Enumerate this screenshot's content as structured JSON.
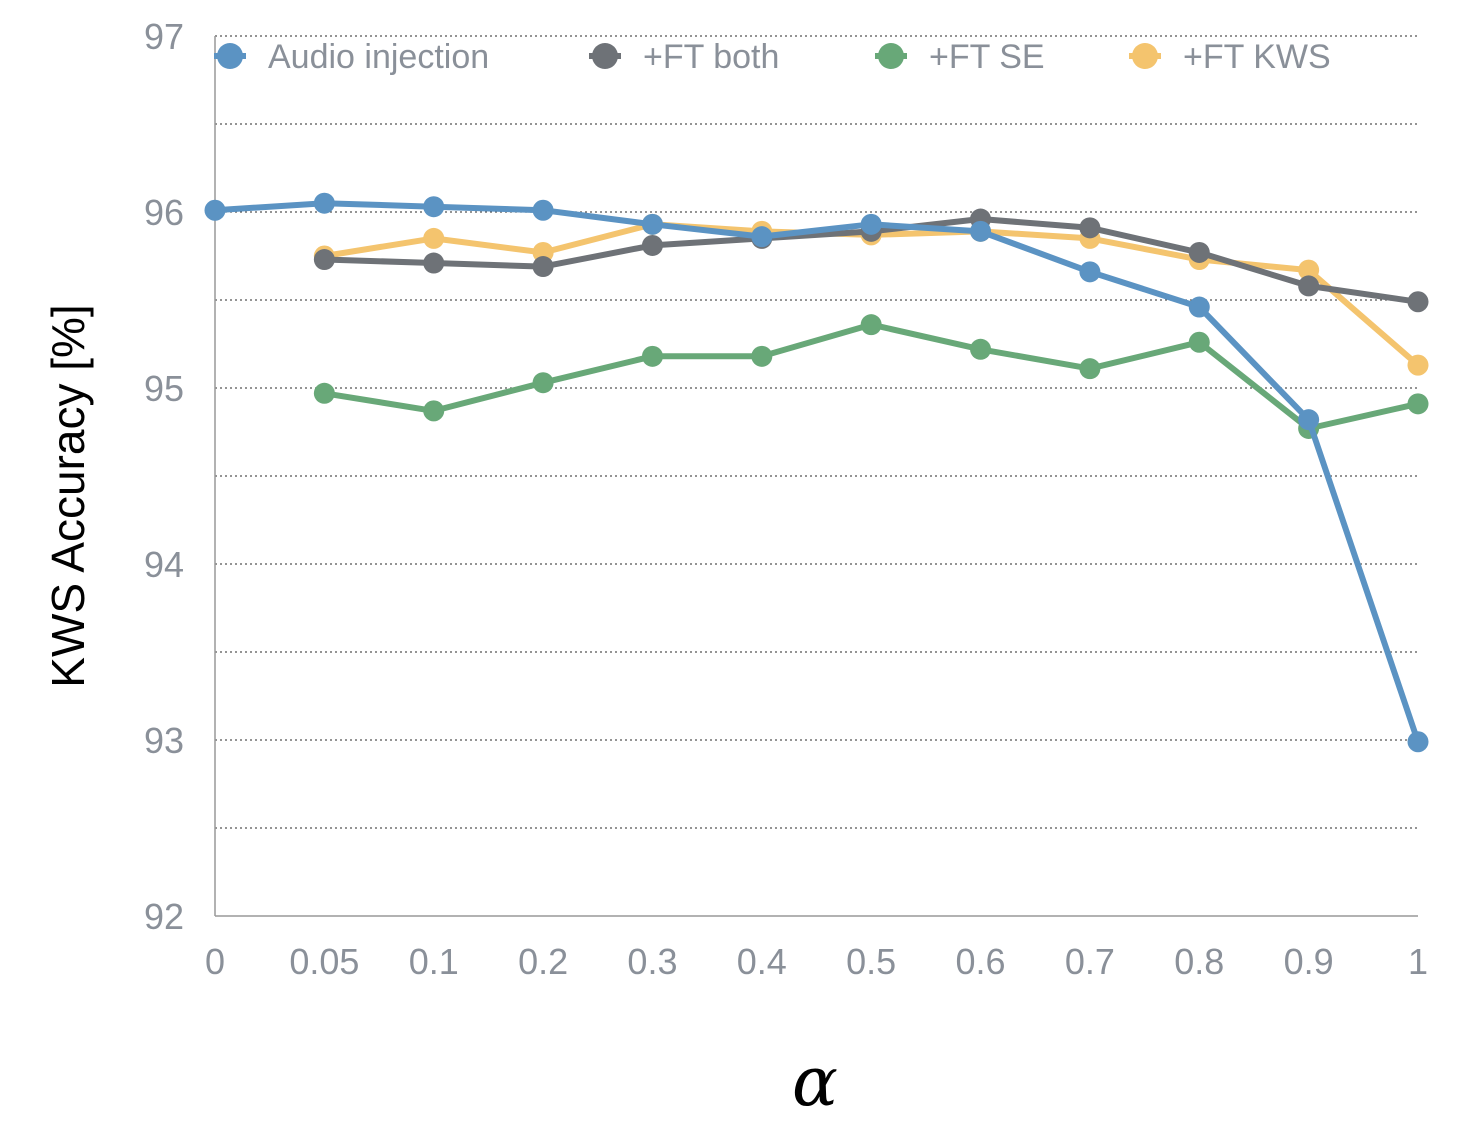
{
  "chart_data": {
    "type": "line",
    "title": "",
    "xlabel": "α",
    "ylabel": "KWS Accuracy [%]",
    "ylim": [
      92,
      97
    ],
    "yticks": [
      "92",
      "93",
      "94",
      "95",
      "96",
      "97"
    ],
    "categories": [
      "0",
      "0.05",
      "0.1",
      "0.2",
      "0.3",
      "0.4",
      "0.5",
      "0.6",
      "0.7",
      "0.8",
      "0.9",
      "1"
    ],
    "grid": true,
    "legend": "top",
    "series": [
      {
        "name": "Audio injection",
        "color": "#5b93c3",
        "values": [
          96.01,
          96.05,
          96.03,
          96.01,
          95.93,
          95.86,
          95.93,
          95.89,
          95.66,
          95.46,
          94.82,
          92.99
        ]
      },
      {
        "name": "+FT both",
        "color": "#6e7277",
        "values": [
          null,
          95.73,
          95.71,
          95.69,
          95.81,
          95.85,
          95.89,
          95.96,
          95.91,
          95.77,
          95.58,
          95.49
        ]
      },
      {
        "name": "+FT SE",
        "color": "#68a878",
        "values": [
          null,
          94.97,
          94.87,
          95.03,
          95.18,
          95.18,
          95.36,
          95.22,
          95.11,
          95.26,
          94.77,
          94.91
        ]
      },
      {
        "name": "+FT KWS",
        "color": "#f4c46e",
        "values": [
          null,
          95.75,
          95.85,
          95.77,
          95.93,
          95.89,
          95.87,
          95.89,
          95.85,
          95.73,
          95.67,
          95.13
        ]
      }
    ]
  }
}
